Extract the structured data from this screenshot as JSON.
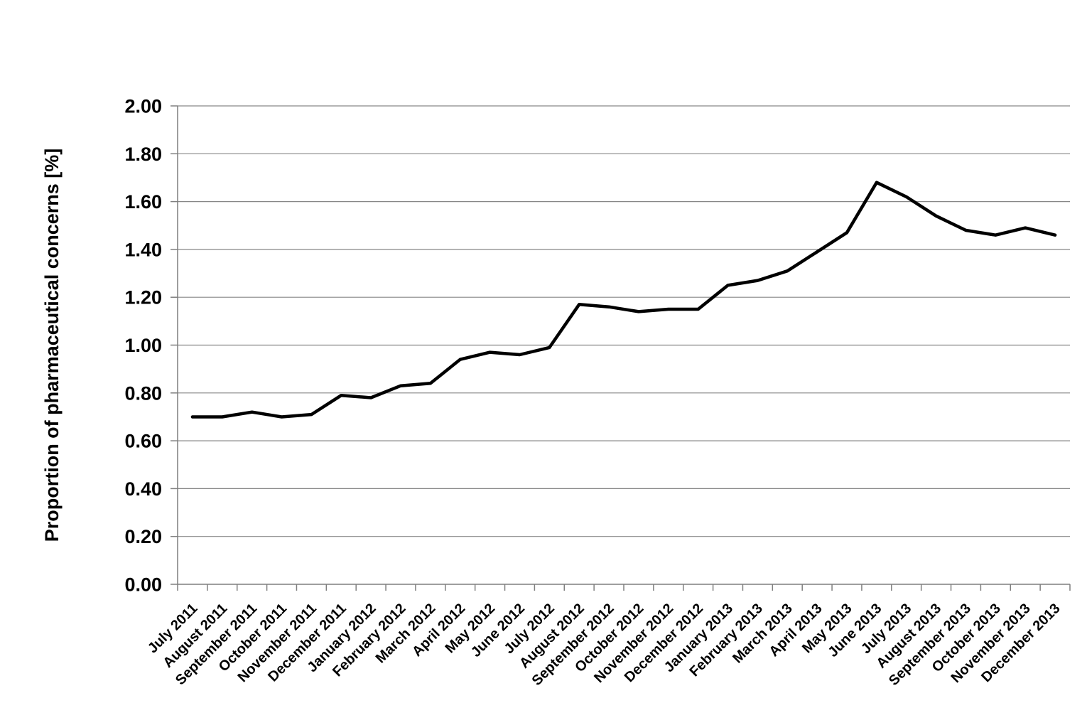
{
  "chart_data": {
    "type": "line",
    "title": "",
    "xlabel": "",
    "ylabel": "Proportion of pharmaceutical concerns [%]",
    "categories": [
      "July 2011",
      "August 2011",
      "September 2011",
      "October 2011",
      "November 2011",
      "December 2011",
      "January 2012",
      "February 2012",
      "March 2012",
      "April 2012",
      "May 2012",
      "June 2012",
      "July 2012",
      "August 2012",
      "September 2012",
      "October 2012",
      "November 2012",
      "December 2012",
      "January 2013",
      "February 2013",
      "March 2013",
      "April 2013",
      "May 2013",
      "June 2013",
      "July 2013",
      "August 2013",
      "September 2013",
      "October 2013",
      "November 2013",
      "December 2013"
    ],
    "values": [
      0.7,
      0.7,
      0.72,
      0.7,
      0.71,
      0.79,
      0.78,
      0.83,
      0.84,
      0.94,
      0.97,
      0.96,
      0.99,
      1.17,
      1.16,
      1.14,
      1.15,
      1.15,
      1.25,
      1.27,
      1.31,
      1.39,
      1.47,
      1.68,
      1.62,
      1.54,
      1.48,
      1.46,
      1.49,
      1.46
    ],
    "ylim": [
      0.0,
      2.0
    ],
    "ytick_step": 0.2,
    "ytick_labels": [
      "0.00",
      "0.20",
      "0.40",
      "0.60",
      "0.80",
      "1.00",
      "1.20",
      "1.40",
      "1.60",
      "1.80",
      "2.00"
    ],
    "grid": "horizontal",
    "legend": "none",
    "line_color": "#000000",
    "grid_color": "#868686",
    "axis_color": "#7f7f7f",
    "text_color": "#000000",
    "background": "#ffffff"
  }
}
